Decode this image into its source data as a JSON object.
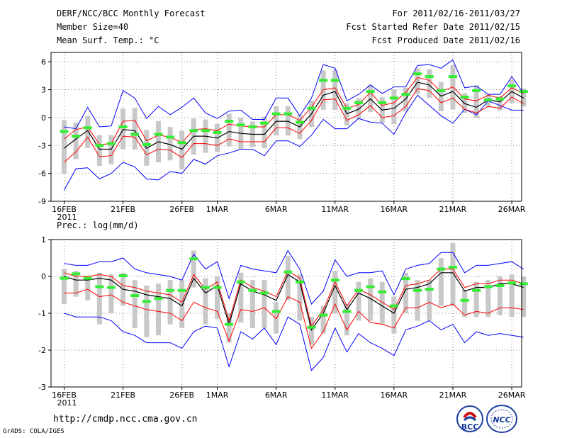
{
  "header": {
    "title": "DERF/NCC/BCC Monthly Forecast",
    "member": "Member Size=40",
    "variable": "Mean Surf. Temp.: °C",
    "period": "For 2011/02/16-2011/03/27",
    "refer": "Fcst Started Refer Date 2011/02/15",
    "produced": "Fcst Produced Date 2011/02/16"
  },
  "footer": {
    "url": "http://cmdp.ncc.cma.gov.cn",
    "grads": "GrADS: COLA/IGES",
    "logo_bcc": "BCC",
    "logo_ncc": "NCC"
  },
  "colors": {
    "ens_range": "#0000ff",
    "spread": "#ff0000",
    "mean": "#000000",
    "box": "#c8c8c8",
    "observed": "#33ee33",
    "grid": "#888888"
  },
  "chart_data": [
    {
      "type": "line",
      "label": "Mean Surf. Temp.: °C",
      "ylim": [
        -9,
        7
      ],
      "yticks": [
        -9,
        -6,
        -3,
        0,
        3,
        6
      ],
      "xticks": [
        {
          "day": 0,
          "label": "16FEB"
        },
        {
          "day": 5,
          "label": "21FEB"
        },
        {
          "day": 10,
          "label": "26FEB"
        },
        {
          "day": 13,
          "label": "1MAR"
        },
        {
          "day": 18,
          "label": "6MAR"
        },
        {
          "day": 23,
          "label": "11MAR"
        },
        {
          "day": 28,
          "label": "16MAR"
        },
        {
          "day": 33,
          "label": "21MAR"
        },
        {
          "day": 38,
          "label": "26MAR"
        }
      ],
      "year_label": "2011",
      "series": [
        {
          "name": "max",
          "values": [
            -7.8,
            -5.5,
            -5.4,
            -6.6,
            -6.0,
            -4.8,
            -5.3,
            -6.6,
            -6.7,
            -5.8,
            -6.0,
            -4.5,
            -5.0,
            -4.1,
            -3.8,
            -3.4,
            -3.4,
            -4.1,
            -2.5,
            -2.5,
            -3.1,
            -1.9,
            -0.2,
            -1.2,
            -1.2,
            -0.1,
            -0.5,
            -0.6,
            -1.8,
            0.5,
            2.4,
            1.3,
            0.2,
            -0.6,
            0.9,
            0.3,
            1.8,
            1.3,
            0.8,
            0.8
          ]
        },
        {
          "name": "upper",
          "values": [
            -4.8,
            -3.7,
            -2.1,
            -4.2,
            -4.1,
            -2.0,
            -2.1,
            -4.0,
            -3.4,
            -3.5,
            -4.3,
            -2.8,
            -2.8,
            -3.0,
            -2.3,
            -2.6,
            -2.6,
            -2.6,
            -1.1,
            -1.1,
            -1.7,
            -0.3,
            1.9,
            2.0,
            -0.3,
            0.3,
            1.3,
            0.0,
            0.2,
            1.2,
            3.1,
            2.9,
            1.6,
            2.1,
            0.9,
            0.5,
            1.2,
            1.0,
            2.2,
            1.5
          ]
        },
        {
          "name": "mean",
          "values": [
            -3.3,
            -2.3,
            -1.4,
            -3.4,
            -3.4,
            -1.3,
            -1.4,
            -3.3,
            -2.6,
            -2.9,
            -3.4,
            -2.0,
            -2.0,
            -2.2,
            -1.5,
            -1.7,
            -1.8,
            -1.8,
            -0.4,
            -0.4,
            -1.0,
            0.4,
            2.4,
            2.8,
            0.4,
            0.9,
            2.0,
            0.8,
            1.0,
            2.0,
            3.8,
            3.5,
            2.3,
            2.8,
            1.5,
            1.1,
            1.9,
            1.7,
            2.8,
            2.1
          ]
        },
        {
          "name": "lower",
          "values": [
            -2.3,
            -1.3,
            -1.0,
            -2.9,
            -2.8,
            -0.4,
            -0.3,
            -2.5,
            -1.9,
            -2.1,
            -2.7,
            -1.3,
            -1.2,
            -1.4,
            -0.7,
            -0.9,
            -1.0,
            -1.0,
            0.3,
            0.3,
            -0.3,
            1.1,
            3.0,
            3.2,
            1.0,
            1.4,
            2.7,
            1.3,
            1.6,
            2.7,
            4.3,
            4.0,
            2.8,
            3.3,
            2.0,
            1.8,
            2.4,
            2.1,
            3.2,
            2.6
          ]
        },
        {
          "name": "min",
          "values": [
            -1.0,
            -1.2,
            1.1,
            -1.0,
            -0.9,
            2.9,
            2.1,
            -0.1,
            1.2,
            0.3,
            1.1,
            2.1,
            0.5,
            -0.1,
            0.7,
            0.8,
            -0.2,
            -0.2,
            2.1,
            2.1,
            0.2,
            2.1,
            5.7,
            5.3,
            1.8,
            2.5,
            3.5,
            2.6,
            3.3,
            3.3,
            5.6,
            5.7,
            5.3,
            6.2,
            3.2,
            3.4,
            2.5,
            2.5,
            4.4,
            2.6
          ]
        },
        {
          "name": "obs",
          "values": [
            -1.5,
            -2.0,
            -1.1,
            -3.0,
            -2.8,
            -1.0,
            -1.8,
            -2.9,
            -1.8,
            -2.1,
            -2.7,
            -1.4,
            -1.4,
            -1.6,
            -0.4,
            -0.8,
            -1.0,
            -0.6,
            0.4,
            0.4,
            -0.5,
            1.0,
            4.0,
            4.0,
            1.0,
            1.6,
            2.8,
            1.6,
            2.1,
            2.5,
            4.7,
            4.4,
            2.9,
            4.4,
            2.2,
            2.9,
            1.9,
            2.0,
            3.4,
            2.8
          ]
        }
      ]
    },
    {
      "type": "line",
      "label": "Prec.: log(mm/d)",
      "ylim": [
        -3,
        1
      ],
      "yticks": [
        -3,
        -2,
        -1,
        0,
        1
      ],
      "xticks": [
        {
          "day": 0,
          "label": "16FEB"
        },
        {
          "day": 5,
          "label": "21FEB"
        },
        {
          "day": 10,
          "label": "26FEB"
        },
        {
          "day": 13,
          "label": "1MAR"
        },
        {
          "day": 18,
          "label": "6MAR"
        },
        {
          "day": 23,
          "label": "11MAR"
        },
        {
          "day": 28,
          "label": "16MAR"
        },
        {
          "day": 33,
          "label": "21MAR"
        },
        {
          "day": 38,
          "label": "26MAR"
        }
      ],
      "year_label": "2011",
      "series": [
        {
          "name": "max",
          "values": [
            -1.0,
            -1.1,
            -1.1,
            -1.1,
            -1.2,
            -1.5,
            -1.6,
            -1.8,
            -1.8,
            -1.8,
            -1.95,
            -1.5,
            -1.35,
            -1.4,
            -2.45,
            -1.5,
            -1.7,
            -1.4,
            -1.85,
            -1.1,
            -1.3,
            -2.55,
            -2.2,
            -1.4,
            -2.05,
            -1.55,
            -1.8,
            -1.95,
            -2.15,
            -1.45,
            -1.35,
            -1.2,
            -1.45,
            -1.3,
            -1.8,
            -1.5,
            -1.6,
            -1.55,
            -1.6,
            -1.65
          ]
        },
        {
          "name": "upper",
          "values": [
            -0.45,
            -0.45,
            -0.35,
            -0.55,
            -0.5,
            -0.7,
            -0.8,
            -0.9,
            -0.95,
            -1.0,
            -1.2,
            -0.7,
            -0.85,
            -0.95,
            -1.75,
            -0.9,
            -0.95,
            -0.85,
            -1.15,
            -0.55,
            -0.7,
            -1.95,
            -1.5,
            -0.75,
            -1.45,
            -0.95,
            -1.25,
            -1.3,
            -1.4,
            -0.85,
            -0.85,
            -0.7,
            -0.85,
            -0.75,
            -1.05,
            -0.95,
            -1.0,
            -0.85,
            -0.85,
            -0.9
          ]
        },
        {
          "name": "mean",
          "values": [
            0.0,
            -0.1,
            -0.1,
            -0.05,
            -0.1,
            -0.35,
            -0.4,
            -0.5,
            -0.55,
            -0.6,
            -0.8,
            -0.05,
            -0.45,
            -0.25,
            -1.3,
            -0.2,
            -0.4,
            -0.5,
            -0.65,
            0.05,
            -0.15,
            -1.45,
            -1.0,
            -0.25,
            -0.9,
            -0.45,
            -0.6,
            -0.8,
            -1.0,
            -0.35,
            -0.3,
            -0.2,
            0.1,
            0.1,
            -0.4,
            -0.3,
            -0.3,
            -0.2,
            -0.2,
            -0.3
          ]
        },
        {
          "name": "lower",
          "values": [
            0.1,
            0.0,
            0.0,
            0.05,
            0.0,
            -0.25,
            -0.3,
            -0.4,
            -0.45,
            -0.5,
            -0.7,
            0.05,
            -0.35,
            -0.15,
            -1.2,
            -0.1,
            -0.3,
            -0.4,
            -0.55,
            0.15,
            -0.05,
            -1.35,
            -0.9,
            -0.15,
            -0.8,
            -0.35,
            -0.5,
            -0.7,
            -0.9,
            -0.25,
            -0.2,
            -0.1,
            0.2,
            0.2,
            -0.3,
            -0.2,
            -0.2,
            -0.1,
            -0.1,
            -0.2
          ]
        },
        {
          "name": "min",
          "values": [
            0.35,
            0.3,
            0.3,
            0.4,
            0.4,
            0.5,
            0.2,
            0.1,
            0.05,
            0.0,
            -0.1,
            0.6,
            0.2,
            0.4,
            -0.6,
            0.3,
            0.2,
            0.15,
            0.1,
            0.7,
            0.2,
            -0.75,
            -0.4,
            0.45,
            0.0,
            0.1,
            0.1,
            0.15,
            -0.5,
            0.2,
            0.3,
            0.35,
            0.65,
            0.65,
            0.1,
            0.3,
            0.3,
            0.35,
            0.4,
            0.2
          ]
        },
        {
          "name": "obs",
          "values": [
            -0.05,
            0.07,
            -0.05,
            -0.28,
            -0.3,
            0.02,
            -0.52,
            -0.68,
            -0.6,
            -0.38,
            -0.38,
            0.48,
            -0.3,
            -0.3,
            -1.3,
            -0.15,
            -0.38,
            -0.45,
            -0.95,
            0.12,
            -0.15,
            -1.38,
            -1.05,
            -0.1,
            -0.95,
            -0.38,
            -0.28,
            -0.42,
            -0.8,
            -0.06,
            -0.38,
            -0.35,
            0.2,
            0.25,
            -0.65,
            -0.38,
            -0.28,
            -0.25,
            -0.18,
            -0.2
          ]
        },
        {
          "name": "box_hi",
          "values": [
            0.2,
            0.15,
            0.0,
            0.1,
            0.05,
            0.1,
            -0.1,
            -0.25,
            -0.2,
            -0.1,
            -0.1,
            0.7,
            -0.05,
            0.0,
            -1.0,
            0.1,
            -0.1,
            -0.1,
            -0.7,
            0.55,
            0.05,
            -1.1,
            -0.8,
            0.15,
            -0.75,
            -0.15,
            -0.05,
            -0.15,
            -0.55,
            0.1,
            -0.1,
            -0.1,
            0.5,
            0.9,
            -0.35,
            -0.15,
            -0.1,
            0.0,
            0.05,
            0.0
          ]
        },
        {
          "name": "box_lo",
          "values": [
            -0.75,
            -0.55,
            -0.65,
            -1.3,
            -1.0,
            -0.8,
            -1.4,
            -1.65,
            -1.6,
            -1.3,
            -1.4,
            -0.3,
            -1.3,
            -1.15,
            -1.8,
            -1.25,
            -1.4,
            -1.4,
            -1.55,
            -0.65,
            -1.2,
            -1.85,
            -1.55,
            -1.0,
            -1.6,
            -1.2,
            -1.2,
            -1.3,
            -1.55,
            -1.0,
            -1.2,
            -1.2,
            -0.8,
            -0.8,
            -1.1,
            -1.1,
            -1.1,
            -1.05,
            -1.1,
            -1.1
          ]
        }
      ]
    }
  ]
}
